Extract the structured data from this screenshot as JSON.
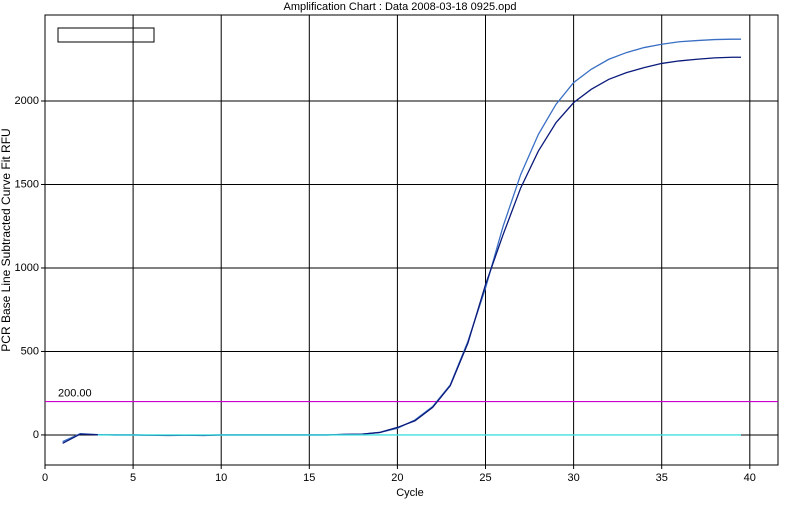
{
  "chart_data": {
    "type": "line",
    "title": "Amplification Chart : Data 2008-03-18 0925.opd",
    "x_label": "Cycle",
    "y_label": "PCR Base Line Subtracted Curve Fit RFU",
    "x": [
      1,
      2,
      3,
      4,
      5,
      6,
      7,
      8,
      9,
      10,
      11,
      12,
      13,
      14,
      15,
      16,
      17,
      18,
      19,
      20,
      21,
      22,
      23,
      24,
      25,
      26,
      27,
      28,
      29,
      30,
      31,
      32,
      33,
      34,
      35,
      36,
      37,
      38,
      39,
      39.5
    ],
    "series": [
      {
        "color": "#3a6fc4",
        "values": [
          -40,
          8,
          2,
          0,
          0,
          -1,
          -2,
          -1,
          -2,
          0,
          0,
          0,
          0,
          0,
          0,
          0,
          3,
          5,
          15,
          40,
          90,
          170,
          300,
          560,
          880,
          1250,
          1560,
          1800,
          1980,
          2110,
          2190,
          2250,
          2290,
          2320,
          2340,
          2355,
          2362,
          2368,
          2370,
          2370
        ]
      },
      {
        "color": "#0a1a7a",
        "values": [
          -50,
          5,
          1,
          0,
          0,
          -2,
          -3,
          -2,
          -3,
          0,
          0,
          0,
          0,
          0,
          0,
          0,
          3,
          5,
          15,
          45,
          85,
          165,
          295,
          550,
          900,
          1200,
          1480,
          1700,
          1870,
          1990,
          2070,
          2130,
          2170,
          2200,
          2225,
          2240,
          2250,
          2258,
          2262,
          2262
        ]
      },
      {
        "color": "#40e0e0",
        "values": [
          null,
          null,
          0,
          0,
          0,
          0,
          0,
          0,
          0,
          0,
          0,
          0,
          0,
          0,
          0,
          0,
          0,
          0,
          0,
          0,
          0,
          0,
          0,
          0,
          0,
          0,
          0,
          0,
          0,
          0,
          0,
          0,
          0,
          0,
          0,
          0,
          0,
          0,
          0,
          0
        ]
      }
    ],
    "threshold": {
      "value": 200,
      "label": "200.00",
      "color": "#cc00cc"
    },
    "xlim": [
      0,
      41.6
    ],
    "xticks": [
      0,
      5,
      10,
      15,
      20,
      25,
      30,
      35,
      40
    ],
    "ylim": [
      -180,
      2515
    ],
    "yticks": [
      0,
      500,
      1000,
      1500,
      2000
    ],
    "grid": true
  }
}
